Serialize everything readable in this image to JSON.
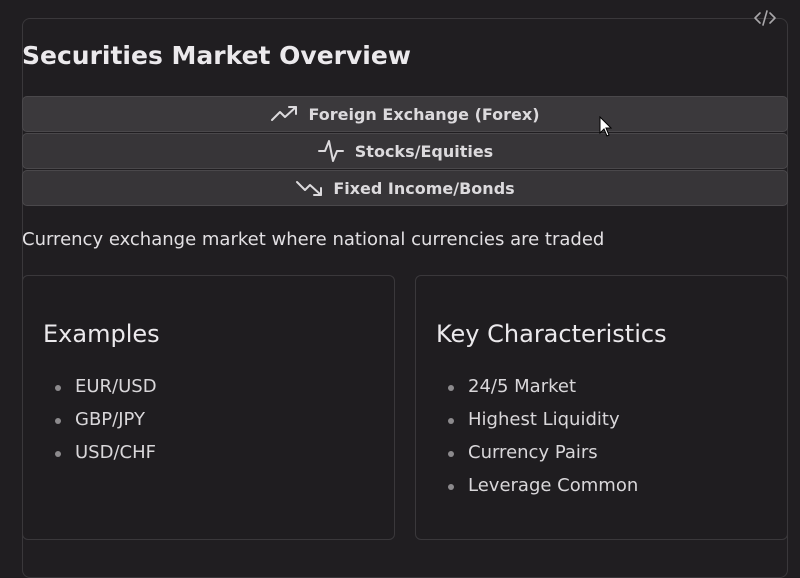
{
  "page": {
    "title": "Securities Market Overview",
    "code_toggle_icon": "code-brackets-icon"
  },
  "markets": [
    {
      "label": "Foreign Exchange (Forex)",
      "icon": "trending-up-icon",
      "active": true
    },
    {
      "label": "Stocks/Equities",
      "icon": "activity-pulse-icon",
      "active": false
    },
    {
      "label": "Fixed Income/Bonds",
      "icon": "trending-down-icon",
      "active": false
    }
  ],
  "description": "Currency exchange market where national currencies are traded",
  "examples": {
    "heading": "Examples",
    "items": [
      "EUR/USD",
      "GBP/JPY",
      "USD/CHF"
    ]
  },
  "characteristics": {
    "heading": "Key Characteristics",
    "items": [
      "24/5 Market",
      "Highest Liquidity",
      "Currency Pairs",
      "Leverage Common"
    ]
  },
  "colors": {
    "background": "#201e21",
    "button": "#373538",
    "border": "#3a383b",
    "text": "#e4e2e5"
  }
}
